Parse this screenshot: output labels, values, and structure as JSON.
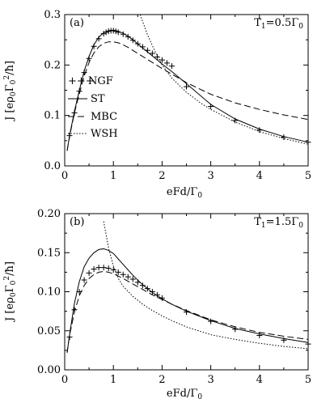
{
  "chart_data": [
    {
      "type": "line",
      "panel_label": "(a)",
      "parameter": {
        "base": "T",
        "sub": "1",
        "eq": "=0.5",
        "sym": "Γ",
        "sym_sub": "0"
      },
      "xlabel": {
        "base": "eFd/",
        "sym": "Γ",
        "sub": "0"
      },
      "ylabel": {
        "pre": "J [e",
        "rho": "ρ",
        "rho_sub": "0",
        "gam": "Γ",
        "gam_sub": "0",
        "gam_sup": "2",
        "post": "/ħ]"
      },
      "xlim": [
        0,
        5
      ],
      "ylim": [
        0,
        0.3
      ],
      "xticks": [
        0,
        1,
        2,
        3,
        4,
        5
      ],
      "xtick_labels": [
        "0",
        "1",
        "2",
        "3",
        "4",
        "5"
      ],
      "yticks": [
        0,
        0.1,
        0.2,
        0.3
      ],
      "ytick_labels": [
        "0.0",
        "0.1",
        "0.2",
        "0.3"
      ],
      "legend": {
        "position": "middle-left",
        "entries": [
          {
            "marker": "+++",
            "label": "NGF"
          },
          {
            "style": "solid",
            "label": "ST"
          },
          {
            "style": "dashed",
            "label": "MBC"
          },
          {
            "style": "dotted",
            "label": "WSH"
          }
        ]
      },
      "series": [
        {
          "name": "NGF",
          "style": "plus",
          "x": [
            0.1,
            0.2,
            0.3,
            0.4,
            0.5,
            0.6,
            0.7,
            0.8,
            0.85,
            0.9,
            0.95,
            1.0,
            1.05,
            1.1,
            1.2,
            1.3,
            1.4,
            1.5,
            1.6,
            1.7,
            1.8,
            1.9,
            2.0,
            2.1,
            2.2,
            2.5,
            3.0,
            3.5,
            4.0,
            4.5,
            5.0
          ],
          "y": [
            0.06,
            0.105,
            0.148,
            0.185,
            0.213,
            0.237,
            0.252,
            0.262,
            0.265,
            0.267,
            0.268,
            0.268,
            0.267,
            0.265,
            0.261,
            0.256,
            0.249,
            0.242,
            0.236,
            0.229,
            0.223,
            0.216,
            0.21,
            0.204,
            0.198,
            0.157,
            0.118,
            0.09,
            0.071,
            0.057,
            0.047
          ]
        },
        {
          "name": "ST",
          "style": "solid",
          "x": [
            0.05,
            0.1,
            0.2,
            0.3,
            0.4,
            0.5,
            0.6,
            0.7,
            0.8,
            0.9,
            1.0,
            1.1,
            1.2,
            1.3,
            1.4,
            1.5,
            1.6,
            1.8,
            2.0,
            2.2,
            2.5,
            3.0,
            3.5,
            4.0,
            4.5,
            5.0
          ],
          "y": [
            0.03,
            0.06,
            0.108,
            0.15,
            0.188,
            0.217,
            0.24,
            0.255,
            0.264,
            0.268,
            0.269,
            0.267,
            0.263,
            0.257,
            0.25,
            0.242,
            0.234,
            0.218,
            0.202,
            0.187,
            0.163,
            0.122,
            0.093,
            0.073,
            0.058,
            0.047
          ]
        },
        {
          "name": "MBC",
          "style": "dashed",
          "x": [
            0.05,
            0.1,
            0.2,
            0.3,
            0.4,
            0.5,
            0.6,
            0.7,
            0.8,
            0.9,
            1.0,
            1.1,
            1.2,
            1.3,
            1.4,
            1.5,
            1.6,
            1.8,
            2.0,
            2.2,
            2.5,
            3.0,
            3.5,
            4.0,
            4.5,
            5.0
          ],
          "y": [
            0.03,
            0.058,
            0.105,
            0.143,
            0.178,
            0.205,
            0.224,
            0.236,
            0.243,
            0.246,
            0.246,
            0.244,
            0.24,
            0.235,
            0.229,
            0.223,
            0.217,
            0.205,
            0.193,
            0.182,
            0.165,
            0.142,
            0.125,
            0.112,
            0.101,
            0.092
          ]
        },
        {
          "name": "WSH",
          "style": "dotted",
          "x": [
            1.55,
            1.7,
            1.85,
            2.0,
            2.2,
            2.5,
            2.8,
            3.0,
            3.5,
            4.0,
            4.5,
            5.0
          ],
          "y": [
            0.3,
            0.26,
            0.228,
            0.2,
            0.174,
            0.146,
            0.124,
            0.112,
            0.087,
            0.068,
            0.054,
            0.043
          ]
        }
      ]
    },
    {
      "type": "line",
      "panel_label": "(b)",
      "parameter": {
        "base": "T",
        "sub": "1",
        "eq": "=1.5",
        "sym": "Γ",
        "sym_sub": "0"
      },
      "xlabel": {
        "base": "eFd/",
        "sym": "Γ",
        "sub": "0"
      },
      "ylabel": {
        "pre": "J [e",
        "rho": "ρ",
        "rho_sub": "0",
        "gam": "Γ",
        "gam_sub": "0",
        "gam_sup": "2",
        "post": "/ħ]"
      },
      "xlim": [
        0,
        5
      ],
      "ylim": [
        0,
        0.2
      ],
      "xticks": [
        0,
        1,
        2,
        3,
        4,
        5
      ],
      "xtick_labels": [
        "0",
        "1",
        "2",
        "3",
        "4",
        "5"
      ],
      "yticks": [
        0,
        0.05,
        0.1,
        0.15,
        0.2
      ],
      "ytick_labels": [
        "0.00",
        "0.05",
        "0.10",
        "0.15",
        "0.20"
      ],
      "series": [
        {
          "name": "NGF",
          "style": "plus",
          "x": [
            0.1,
            0.2,
            0.3,
            0.4,
            0.5,
            0.6,
            0.7,
            0.8,
            0.9,
            1.0,
            1.1,
            1.2,
            1.3,
            1.4,
            1.5,
            1.6,
            1.7,
            1.8,
            1.9,
            2.0,
            2.5,
            3.0,
            3.5,
            4.0,
            4.5,
            5.0
          ],
          "y": [
            0.042,
            0.077,
            0.1,
            0.115,
            0.124,
            0.129,
            0.131,
            0.131,
            0.13,
            0.128,
            0.125,
            0.122,
            0.119,
            0.116,
            0.112,
            0.108,
            0.104,
            0.1,
            0.096,
            0.092,
            0.074,
            0.062,
            0.052,
            0.044,
            0.038,
            0.033
          ]
        },
        {
          "name": "ST",
          "style": "solid",
          "x": [
            0.05,
            0.1,
            0.2,
            0.3,
            0.4,
            0.5,
            0.6,
            0.7,
            0.8,
            0.9,
            1.0,
            1.1,
            1.2,
            1.3,
            1.4,
            1.6,
            1.8,
            2.0,
            2.2,
            2.5,
            3.0,
            3.5,
            4.0,
            4.5,
            5.0
          ],
          "y": [
            0.022,
            0.045,
            0.085,
            0.113,
            0.132,
            0.143,
            0.15,
            0.154,
            0.155,
            0.153,
            0.149,
            0.142,
            0.135,
            0.128,
            0.121,
            0.109,
            0.099,
            0.091,
            0.084,
            0.075,
            0.063,
            0.053,
            0.046,
            0.04,
            0.035
          ]
        },
        {
          "name": "MBC",
          "style": "dashed",
          "x": [
            0.05,
            0.1,
            0.2,
            0.3,
            0.4,
            0.5,
            0.6,
            0.7,
            0.8,
            0.9,
            1.0,
            1.2,
            1.4,
            1.6,
            1.8,
            2.0,
            2.2,
            2.5,
            3.0,
            3.5,
            4.0,
            4.5,
            5.0
          ],
          "y": [
            0.022,
            0.044,
            0.074,
            0.095,
            0.108,
            0.117,
            0.122,
            0.125,
            0.126,
            0.125,
            0.123,
            0.117,
            0.11,
            0.103,
            0.096,
            0.09,
            0.084,
            0.076,
            0.064,
            0.055,
            0.048,
            0.043,
            0.039
          ]
        },
        {
          "name": "WSH",
          "style": "dotted",
          "x": [
            0.8,
            0.9,
            1.0,
            1.1,
            1.2,
            1.4,
            1.6,
            1.8,
            2.0,
            2.2,
            2.5,
            3.0,
            3.5,
            4.0,
            4.5,
            5.0
          ],
          "y": [
            0.19,
            0.156,
            0.133,
            0.117,
            0.107,
            0.094,
            0.084,
            0.076,
            0.069,
            0.063,
            0.055,
            0.045,
            0.039,
            0.034,
            0.03,
            0.027
          ]
        }
      ]
    }
  ]
}
